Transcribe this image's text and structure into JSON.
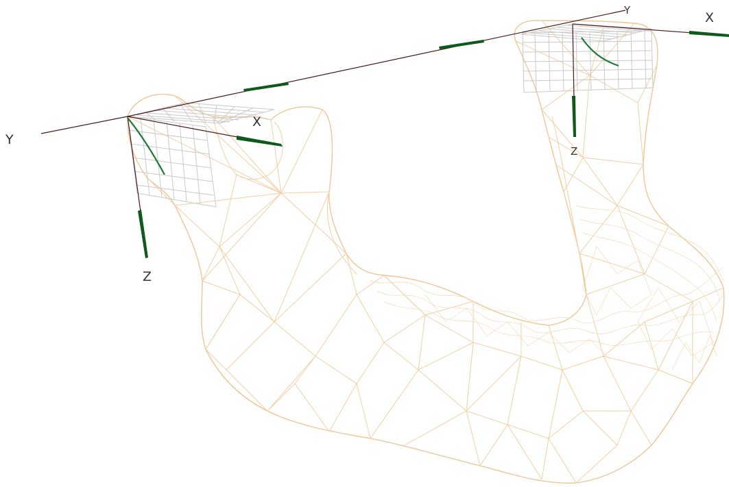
{
  "labels": {
    "left_frame": {
      "x": "X",
      "y": "Y",
      "z": "Z"
    },
    "right_frame": {
      "x": "X",
      "y": "Y",
      "z": "Z"
    }
  },
  "colors": {
    "mesh": "#f2cfa3",
    "grid": "#c9c9c9",
    "axis_line": "#4a1818",
    "axis_arrow": "#0d5a1c"
  }
}
